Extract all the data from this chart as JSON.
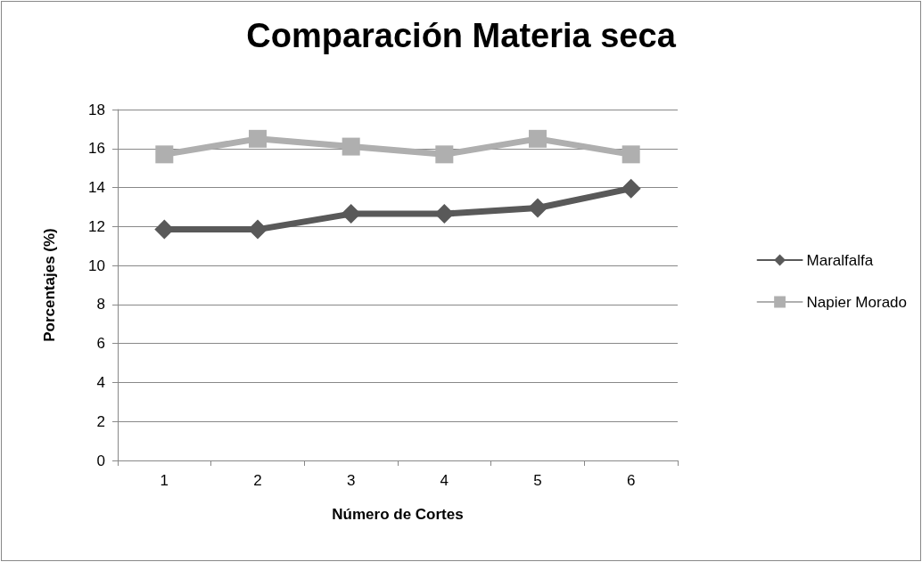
{
  "chart_data": {
    "type": "line",
    "title": "Comparación Materia seca",
    "xlabel": "Número de Cortes",
    "ylabel": "Porcentajes (%)",
    "categories": [
      "1",
      "2",
      "3",
      "4",
      "5",
      "6"
    ],
    "series": [
      {
        "name": "Maralfalfa",
        "color": "#595959",
        "marker": "diamond",
        "values": [
          11.85,
          11.85,
          12.65,
          12.65,
          12.95,
          13.95
        ]
      },
      {
        "name": "Napier Morado",
        "color": "#afafaf",
        "marker": "square",
        "values": [
          15.7,
          16.5,
          16.1,
          15.7,
          16.5,
          15.7
        ]
      }
    ],
    "ylim": [
      0,
      18
    ],
    "yticks": [
      0,
      2,
      4,
      6,
      8,
      10,
      12,
      14,
      16,
      18
    ],
    "grid": "y",
    "legend": "right",
    "line_style": "solid"
  }
}
